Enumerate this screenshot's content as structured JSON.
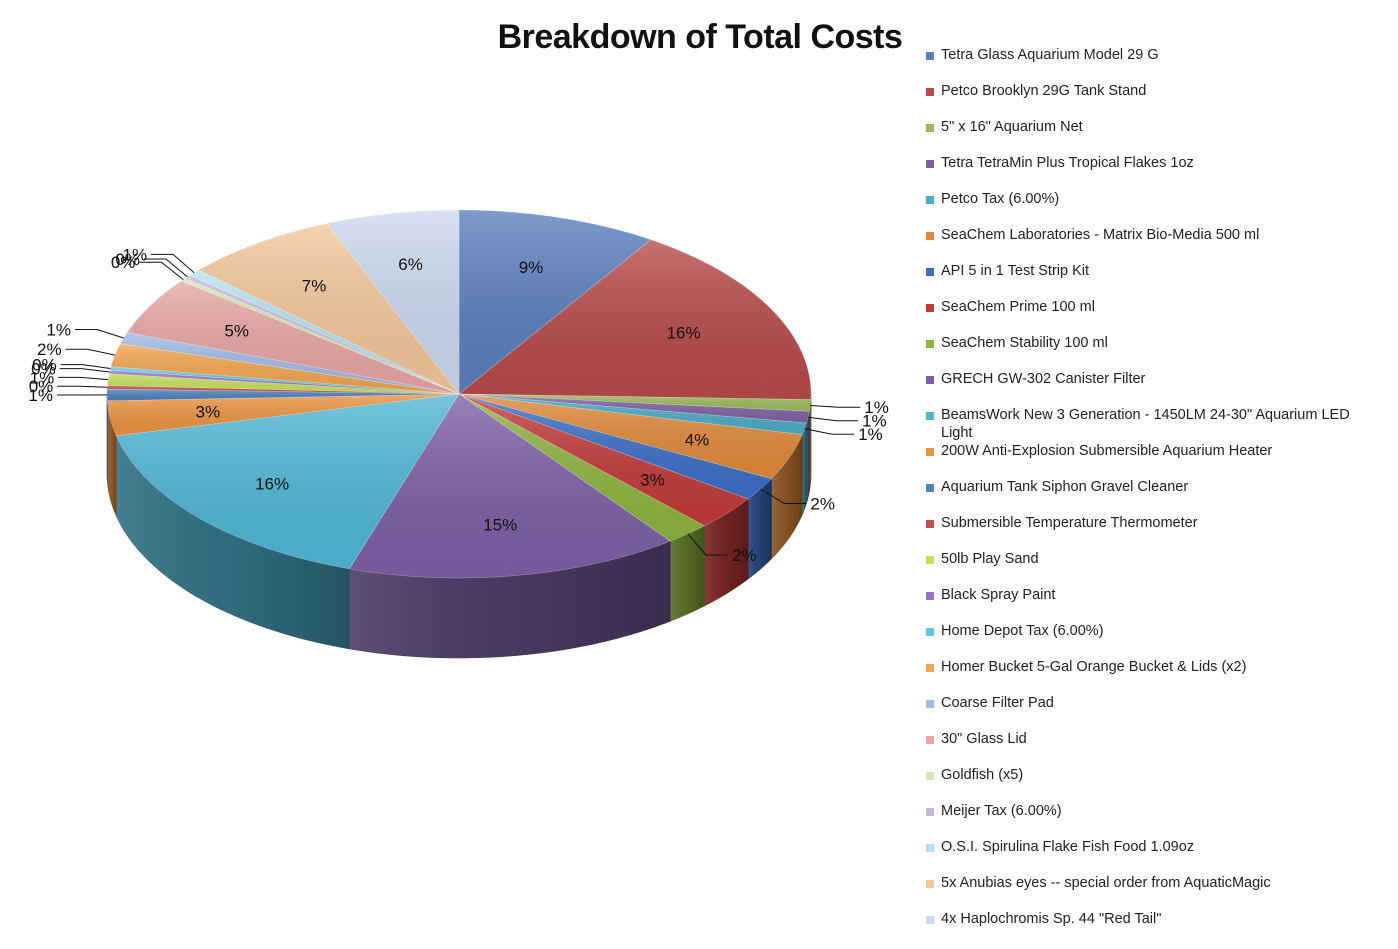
{
  "chart_data": {
    "type": "pie",
    "title": "Breakdown of Total Costs",
    "legend_position": "right",
    "slices": [
      {
        "name": "Tetra Glass Aquarium Model 29 G",
        "value": 9,
        "label": "9%",
        "color": "#5b7fbf"
      },
      {
        "name": "Petco Brooklyn 29G Tank Stand",
        "value": 16,
        "label": "16%",
        "color": "#b84a4a"
      },
      {
        "name": "5\" x 16\" Aquarium Net",
        "value": 1,
        "label": "1%",
        "color": "#9bbb59"
      },
      {
        "name": "Tetra TetraMin Plus Tropical Flakes 1oz",
        "value": 1,
        "label": "1%",
        "color": "#8064a2"
      },
      {
        "name": "Petco Tax (6.00%)",
        "value": 1,
        "label": "1%",
        "color": "#4bacc6"
      },
      {
        "name": "SeaChem Laboratories - Matrix Bio-Media 500 ml",
        "value": 4,
        "label": "4%",
        "color": "#e0893a"
      },
      {
        "name": "API 5 in 1 Test Strip Kit",
        "value": 2,
        "label": "2%",
        "color": "#3c6fc7"
      },
      {
        "name": "SeaChem Prime 100 ml",
        "value": 3,
        "label": "3%",
        "color": "#c23a3a"
      },
      {
        "name": "SeaChem Stability 100 ml",
        "value": 2,
        "label": "2%",
        "color": "#8db43e"
      },
      {
        "name": "GRECH GW-302 Canister Filter",
        "value": 15,
        "label": "15%",
        "color": "#7d5fa6"
      },
      {
        "name": "BeamsWork New 3 Generation - 1450LM 24-30\" Aquarium LED Light",
        "value": 16,
        "label": "16%",
        "color": "#4fb7d6"
      },
      {
        "name": "200W Anti-Explosion Submersible Aquarium Heater",
        "value": 3,
        "label": "3%",
        "color": "#eb9441"
      },
      {
        "name": "Aquarium Tank Siphon Gravel Cleaner",
        "value": 1,
        "label": "1%",
        "color": "#4f81bd"
      },
      {
        "name": "Submersible Temperature Thermometer",
        "value": 0.3,
        "label": "0%",
        "color": "#c0504d"
      },
      {
        "name": "50lb Play Sand",
        "value": 1,
        "label": "1%",
        "color": "#c5e05b"
      },
      {
        "name": "Black Spray Paint",
        "value": 0.3,
        "label": "0%",
        "color": "#9a72c2"
      },
      {
        "name": "Home Depot Tax (6.00%)",
        "value": 0.3,
        "label": "0%",
        "color": "#5ec8e3"
      },
      {
        "name": "Homer Bucket 5-Gal Orange Bucket & Lids (x2)",
        "value": 2,
        "label": "2%",
        "color": "#f3a54d"
      },
      {
        "name": "Coarse Filter Pad",
        "value": 1,
        "label": "1%",
        "color": "#9fbbe8"
      },
      {
        "name": "30\" Glass Lid",
        "value": 5,
        "label": "5%",
        "color": "#e8a6a4"
      },
      {
        "name": "Goldfish (x5)",
        "value": 0.3,
        "label": "0%",
        "color": "#d2e9b0"
      },
      {
        "name": "Meijer Tax (6.00%)",
        "value": 0.3,
        "label": "0%",
        "color": "#c8b7e0"
      },
      {
        "name": "O.S.I. Spirulina Flake Fish Food 1.09oz",
        "value": 0.6,
        "label": "1%",
        "color": "#b6e3f1"
      },
      {
        "name": "5x Anubias eyes -- special order from AquaticMagic",
        "value": 7,
        "label": "7%",
        "color": "#f4c79a"
      },
      {
        "name": "4x Haplochromis Sp. 44 \"Red Tail\"",
        "value": 6,
        "label": "6%",
        "color": "#cdd9f0"
      }
    ]
  }
}
